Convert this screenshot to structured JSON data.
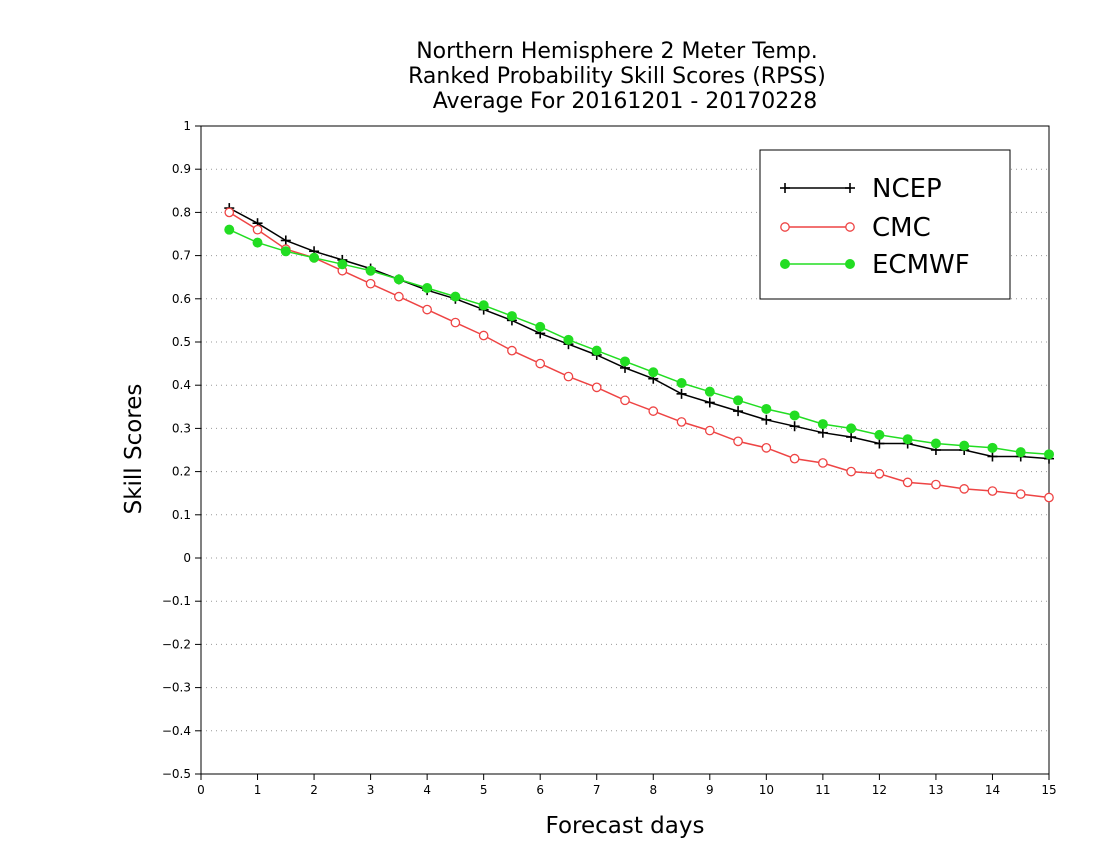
{
  "chart_data": {
    "type": "line",
    "title": [
      "Northern Hemisphere 2 Meter Temp.",
      "Ranked Probability Skill Scores (RPSS)",
      "Average For 20161201 - 20170228"
    ],
    "xlabel": "Forecast days",
    "ylabel": "Skill Scores",
    "xlim": [
      0,
      15
    ],
    "ylim": [
      -0.5,
      1
    ],
    "xticks": [
      0,
      1,
      2,
      3,
      4,
      5,
      6,
      7,
      8,
      9,
      10,
      11,
      12,
      13,
      14,
      15
    ],
    "yticks": [
      1,
      0.9,
      0.8,
      0.7,
      0.6,
      0.5,
      0.4,
      0.3,
      0.2,
      0.1,
      0,
      -0.1,
      -0.2,
      -0.3,
      -0.4,
      -0.5
    ],
    "ytick_labels": [
      "1",
      "0.9",
      "0.8",
      "0.7",
      "0.6",
      "0.5",
      "0.4",
      "0.3",
      "0.2",
      "0.1",
      "0",
      "−0.1",
      "−0.2",
      "−0.3",
      "−0.4",
      "−0.5"
    ],
    "grid": "horizontal dotted",
    "legend_position": "top-right",
    "x": [
      0.5,
      1,
      1.5,
      2,
      2.5,
      3,
      3.5,
      4,
      4.5,
      5,
      5.5,
      6,
      6.5,
      7,
      7.5,
      8,
      8.5,
      9,
      9.5,
      10,
      10.5,
      11,
      11.5,
      12,
      12.5,
      13,
      13.5,
      14,
      14.5,
      15
    ],
    "series": [
      {
        "name": "NCEP",
        "color": "#000000",
        "marker": "plus",
        "values": [
          0.81,
          0.775,
          0.735,
          0.71,
          0.69,
          0.67,
          0.645,
          0.62,
          0.6,
          0.575,
          0.55,
          0.52,
          0.495,
          0.47,
          0.44,
          0.415,
          0.38,
          0.36,
          0.34,
          0.32,
          0.305,
          0.29,
          0.28,
          0.265,
          0.265,
          0.25,
          0.25,
          0.235,
          0.235,
          0.23
        ]
      },
      {
        "name": "CMC",
        "color": "#ee4444",
        "marker": "open-circle",
        "values": [
          0.8,
          0.76,
          0.715,
          0.695,
          0.665,
          0.635,
          0.605,
          0.575,
          0.545,
          0.515,
          0.48,
          0.45,
          0.42,
          0.395,
          0.365,
          0.34,
          0.315,
          0.295,
          0.27,
          0.255,
          0.23,
          0.22,
          0.2,
          0.195,
          0.175,
          0.17,
          0.16,
          0.155,
          0.148,
          0.14
        ]
      },
      {
        "name": "ECMWF",
        "color": "#22dd22",
        "marker": "filled-circle",
        "values": [
          0.76,
          0.73,
          0.71,
          0.695,
          0.68,
          0.665,
          0.645,
          0.625,
          0.605,
          0.585,
          0.56,
          0.535,
          0.505,
          0.48,
          0.455,
          0.43,
          0.405,
          0.385,
          0.365,
          0.345,
          0.33,
          0.31,
          0.3,
          0.285,
          0.275,
          0.265,
          0.26,
          0.255,
          0.245,
          0.24
        ]
      }
    ]
  }
}
